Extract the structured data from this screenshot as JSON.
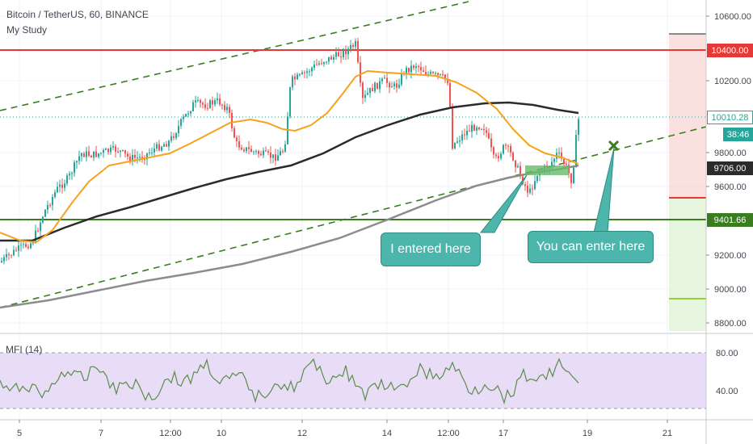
{
  "header": {
    "symbol_line": "Bitcoin / TetherUS, 60, BINANCE",
    "study_name": "My Study"
  },
  "indicator": {
    "label": "MFI (14)"
  },
  "price_axis": {
    "ticks": [
      "10600.00",
      "10200.00",
      "9800.00",
      "9600.00",
      "9200.00",
      "9000.00",
      "8800.00"
    ],
    "tags": {
      "resistance": "10400.00",
      "last_price": "10010.28",
      "countdown": "38:46",
      "ma_value": "9706.00",
      "support": "9401.66"
    }
  },
  "mfi_axis": {
    "ticks": [
      "80.00",
      "40.00"
    ]
  },
  "time_axis": {
    "ticks": [
      "5",
      "7",
      "12:00",
      "10",
      "12",
      "14",
      "12:00",
      "17",
      "19",
      "21"
    ]
  },
  "annotations": {
    "entered": "I entered here",
    "can_enter": "You can enter here"
  },
  "colors": {
    "up": "#26a69a",
    "down": "#ef5350",
    "ma_fast": "#f7a21b",
    "ma_slow": "#2b2b2b",
    "ma_long": "#8c8c8c",
    "support_line": "#3a7d1e",
    "resistance_line": "#e53935",
    "callout": "#4db6ac",
    "mfi_band": "#e9dcf7"
  }
}
